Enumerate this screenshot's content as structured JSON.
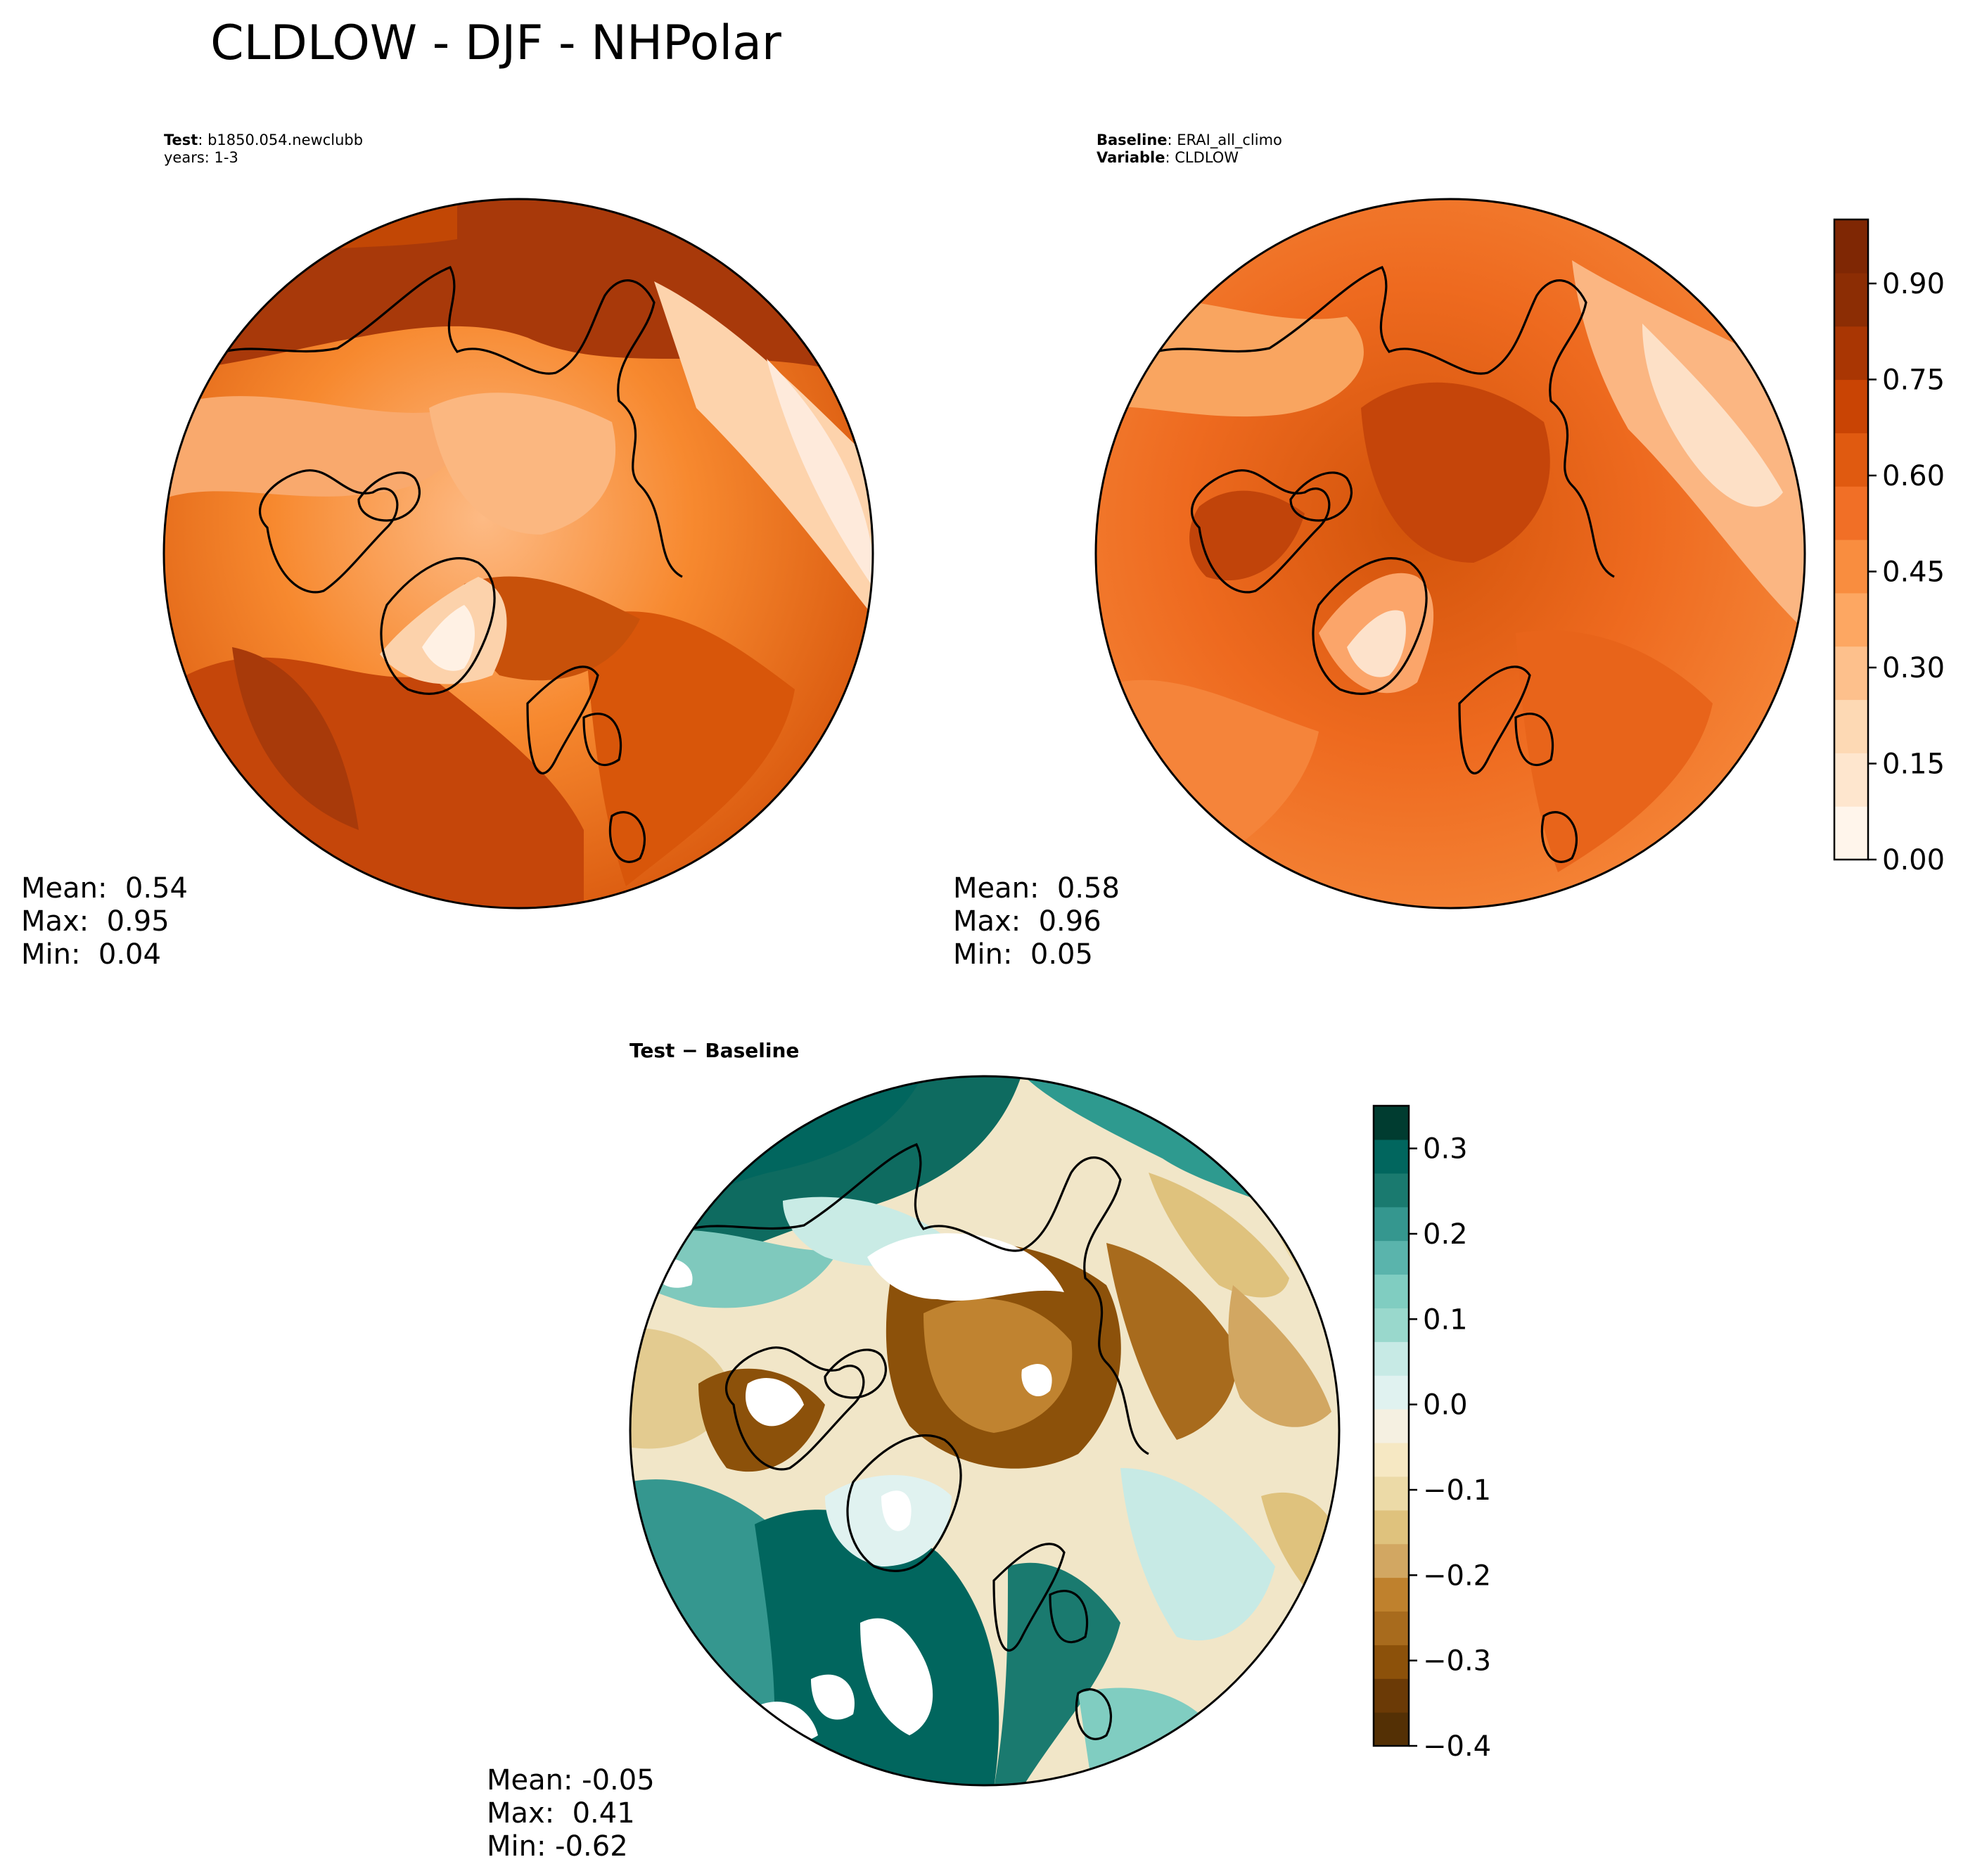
{
  "figure": {
    "title": "CLDLOW - DJF - NHPolar"
  },
  "test_panel": {
    "label_key": "Test",
    "label_value": "b1850.054.newclubb",
    "years": "years: 1-3",
    "stats": {
      "mean": "Mean:  0.54",
      "max": "Max:  0.95",
      "min": "Min:  0.04"
    }
  },
  "baseline_panel": {
    "label_key": "Baseline",
    "label_value": "ERAI_all_climo",
    "variable_key": "Variable",
    "variable_value": "CLDLOW",
    "stats": {
      "mean": "Mean:  0.58",
      "max": "Max:  0.96",
      "min": "Min:  0.05"
    }
  },
  "diff_panel": {
    "title": "Test − Baseline",
    "stats": {
      "mean": "Mean: -0.05",
      "max": "Max:  0.41",
      "min": "Min: -0.62"
    }
  },
  "chart_data": [
    {
      "type": "heatmap",
      "projection": "north-polar-stereographic",
      "colormap": "Oranges",
      "colorbar": {
        "range": [
          0.0,
          1.0
        ],
        "ticks": [
          0.0,
          0.15,
          0.3,
          0.45,
          0.6,
          0.75,
          0.9
        ],
        "tick_labels": [
          "0.00",
          "0.15",
          "0.30",
          "0.45",
          "0.60",
          "0.75",
          "0.90"
        ],
        "colors": [
          "#fff5eb",
          "#fee6ce",
          "#fdd9b4",
          "#fdc08c",
          "#fda762",
          "#f98d3f",
          "#f16f26",
          "#e05a10",
          "#c94404",
          "#a93603",
          "#8c2d04",
          "#7f2704"
        ]
      },
      "summary": {
        "mean": 0.54,
        "max": 0.95,
        "min": 0.04
      }
    },
    {
      "type": "heatmap",
      "projection": "north-polar-stereographic",
      "colormap": "Oranges",
      "colorbar": {
        "range": [
          0.0,
          1.0
        ],
        "ticks": [
          0.0,
          0.15,
          0.3,
          0.45,
          0.6,
          0.75,
          0.9
        ],
        "tick_labels": [
          "0.00",
          "0.15",
          "0.30",
          "0.45",
          "0.60",
          "0.75",
          "0.90"
        ]
      },
      "summary": {
        "mean": 0.58,
        "max": 0.96,
        "min": 0.05
      }
    },
    {
      "type": "heatmap",
      "projection": "north-polar-stereographic",
      "colormap": "BrBG",
      "colorbar": {
        "range": [
          -0.4,
          0.35
        ],
        "ticks": [
          -0.4,
          -0.3,
          -0.2,
          -0.1,
          0.0,
          0.1,
          0.2,
          0.3
        ],
        "tick_labels": [
          "−0.4",
          "−0.3",
          "−0.2",
          "−0.1",
          "0.0",
          "0.1",
          "0.2",
          "0.3"
        ],
        "colors": [
          "#543005",
          "#6b3a06",
          "#8c510a",
          "#a86b1d",
          "#bf812d",
          "#d2a762",
          "#dfc27d",
          "#ecdaa7",
          "#f6e8c3",
          "#f5f0e1",
          "#e0f2f0",
          "#c7eae5",
          "#99d8cc",
          "#80cdc1",
          "#5ab4ac",
          "#35978f",
          "#1a7a6f",
          "#01665e",
          "#003c30"
        ]
      },
      "summary": {
        "mean": -0.05,
        "max": 0.41,
        "min": -0.62
      }
    }
  ]
}
